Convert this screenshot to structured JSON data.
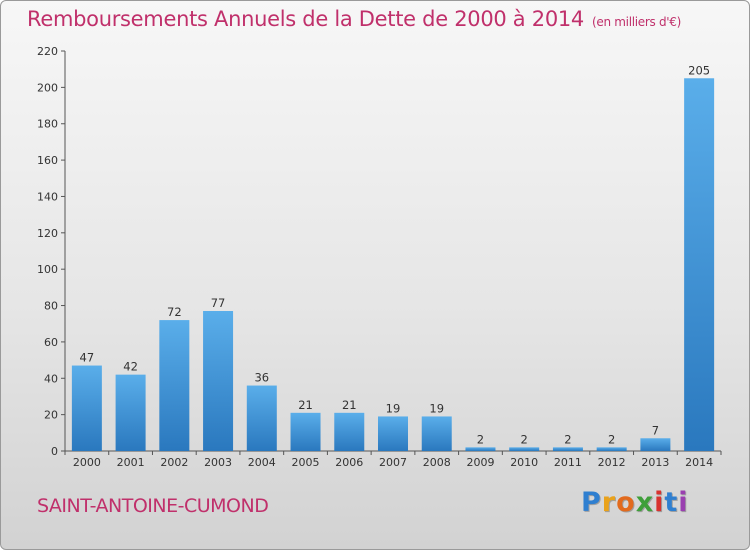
{
  "chart_data": {
    "type": "bar",
    "title": "Remboursements Annuels de la Dette de 2000 à 2014",
    "unit": "(en milliers d'€)",
    "categories": [
      "2000",
      "2001",
      "2002",
      "2003",
      "2004",
      "2005",
      "2006",
      "2007",
      "2008",
      "2009",
      "2010",
      "2011",
      "2012",
      "2013",
      "2014"
    ],
    "values": [
      47,
      42,
      72,
      77,
      36,
      21,
      21,
      19,
      19,
      2,
      2,
      2,
      2,
      7,
      205
    ],
    "ylim": [
      0,
      220
    ],
    "yticks": [
      0,
      20,
      40,
      60,
      80,
      100,
      120,
      140,
      160,
      180,
      200,
      220
    ],
    "grid": false,
    "bar_color": "#3a8fd6",
    "title_color": "#c0306b"
  },
  "commune": "SAINT-ANTOINE-CUMOND",
  "brand": {
    "letters": [
      "P",
      "r",
      "o",
      "x",
      "i",
      "t",
      "i"
    ],
    "colors": [
      "#2f7fd0",
      "#e9a21b",
      "#e26a1d",
      "#3f9f3a",
      "#d8322f",
      "#2f7fd0",
      "#9a3fb0"
    ]
  }
}
